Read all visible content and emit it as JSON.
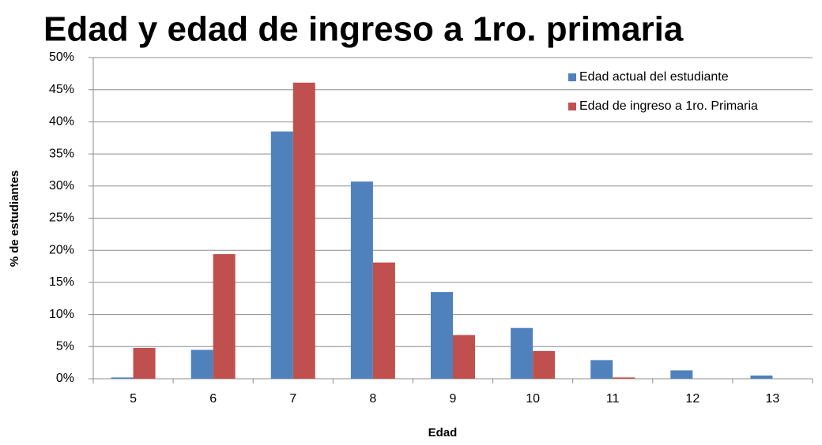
{
  "chart_data": {
    "type": "bar",
    "title": "Edad y edad de ingreso a 1ro. primaria",
    "x_label": "Edad",
    "y_label": "% de estudiantes",
    "categories": [
      "5",
      "6",
      "7",
      "8",
      "9",
      "10",
      "11",
      "12",
      "13"
    ],
    "series": [
      {
        "name": "Edad actual del estudiante",
        "color": "#4f81bd",
        "values": [
          0.2,
          4.5,
          38.5,
          30.7,
          13.5,
          7.9,
          2.9,
          1.3,
          0.5
        ]
      },
      {
        "name": "Edad de ingreso a 1ro. Primaria",
        "color": "#c0504d",
        "values": [
          4.8,
          19.4,
          46.1,
          18.1,
          6.8,
          4.3,
          0.2,
          0,
          0
        ]
      }
    ],
    "ylim": [
      0,
      50
    ],
    "yticks": [
      {
        "value": 0,
        "label": "0%"
      },
      {
        "value": 5,
        "label": "5%"
      },
      {
        "value": 10,
        "label": "10%"
      },
      {
        "value": 15,
        "label": "15%"
      },
      {
        "value": 20,
        "label": "20%"
      },
      {
        "value": 25,
        "label": "25%"
      },
      {
        "value": 30,
        "label": "30%"
      },
      {
        "value": 35,
        "label": "35%"
      },
      {
        "value": 40,
        "label": "40%"
      },
      {
        "value": 45,
        "label": "45%"
      },
      {
        "value": 50,
        "label": "50%"
      }
    ],
    "grid": true,
    "legend": "top-right"
  }
}
